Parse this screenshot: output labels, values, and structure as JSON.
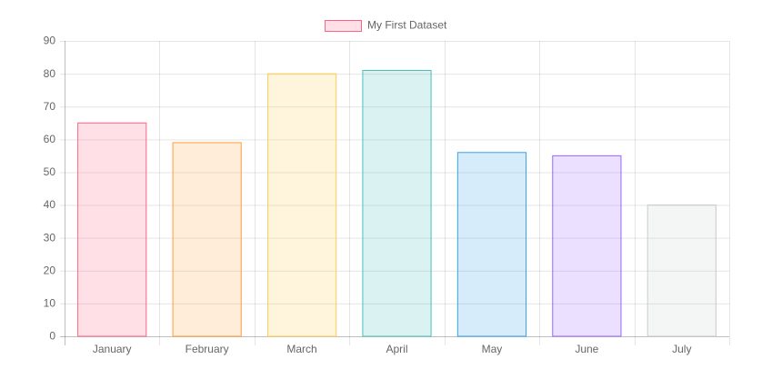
{
  "chart_data": {
    "type": "bar",
    "categories": [
      "January",
      "February",
      "March",
      "April",
      "May",
      "June",
      "July"
    ],
    "series": [
      {
        "name": "My First Dataset",
        "values": [
          65,
          59,
          80,
          81,
          56,
          55,
          40
        ],
        "colors": [
          "rgba(255,99,132,0.2)",
          "rgba(255,159,64,0.2)",
          "rgba(255,205,86,0.2)",
          "rgba(75,192,192,0.2)",
          "rgba(54,162,235,0.2)",
          "rgba(153,102,255,0.2)",
          "rgba(201,203,207,0.2)"
        ],
        "border_colors": [
          "rgb(255,99,132)",
          "rgb(255,159,64)",
          "rgb(255,205,86)",
          "rgb(75,192,192)",
          "rgb(54,162,235)",
          "rgb(153,102,255)",
          "rgb(201,203,207)"
        ]
      }
    ],
    "ylim": [
      0,
      90
    ],
    "yticks": [
      0,
      10,
      20,
      30,
      40,
      50,
      60,
      70,
      80,
      90
    ],
    "grid": true,
    "legend": "top"
  }
}
